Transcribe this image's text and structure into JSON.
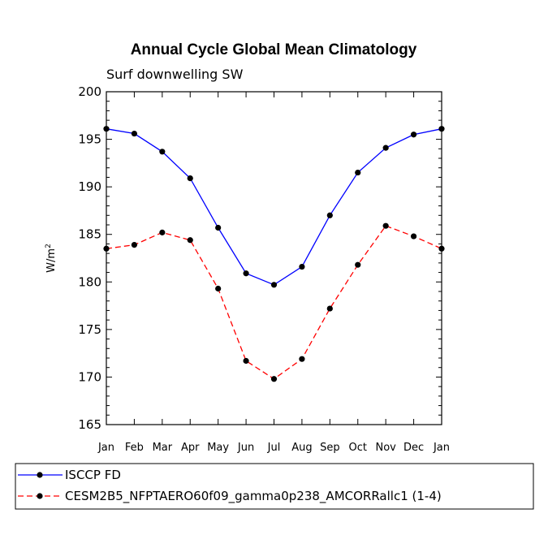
{
  "chart_data": {
    "type": "line",
    "title": "Annual Cycle Global Mean Climatology",
    "subtitle": "Surf downwelling SW",
    "xlabel": "",
    "ylabel_base": "W/m",
    "ylabel_sup": "2",
    "ylim": [
      165,
      200
    ],
    "yticks": [
      165,
      170,
      175,
      180,
      185,
      190,
      195,
      200
    ],
    "categories": [
      "Jan",
      "Feb",
      "Mar",
      "Apr",
      "May",
      "Jun",
      "Jul",
      "Aug",
      "Sep",
      "Oct",
      "Nov",
      "Dec",
      "Jan"
    ],
    "series": [
      {
        "name": "ISCCP FD",
        "color": "#0000ff",
        "dash": "solid",
        "values": [
          196.1,
          195.6,
          193.7,
          190.9,
          185.7,
          180.9,
          179.7,
          181.6,
          187.0,
          191.5,
          194.1,
          195.5,
          196.1
        ]
      },
      {
        "name": "CESM2B5_NFPTAERO60f09_gamma0p238_AMCORRallc1 (1-4)",
        "color": "#ff0000",
        "dash": "dashed",
        "values": [
          183.5,
          183.9,
          185.2,
          184.4,
          179.3,
          171.7,
          169.8,
          171.9,
          177.2,
          181.8,
          185.9,
          184.8,
          183.5
        ]
      }
    ],
    "legend_position": "bottom",
    "grid": false
  }
}
